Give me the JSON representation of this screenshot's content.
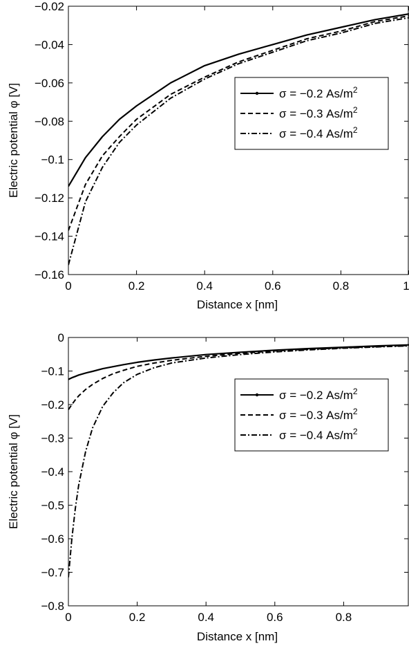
{
  "chart_data": [
    {
      "type": "line",
      "xlabel": "Distance x [nm]",
      "ylabel": "Electric potential φ [V]",
      "xlim": [
        0,
        1
      ],
      "ylim": [
        -0.16,
        -0.02
      ],
      "xticks": [
        0,
        0.2,
        0.4,
        0.6,
        0.8,
        1
      ],
      "xtick_labels": [
        "0",
        "0.2",
        "0.4",
        "0.6",
        "0.8",
        "1"
      ],
      "yticks": [
        -0.16,
        -0.14,
        -0.12,
        -0.1,
        -0.08,
        -0.06,
        -0.04,
        -0.02
      ],
      "ytick_labels": [
        "−0.16",
        "−0.14",
        "−0.12",
        "−0.1",
        "−0.08",
        "−0.06",
        "−0.04",
        "−0.02"
      ],
      "grid": false,
      "legend_position": "right",
      "x": [
        0,
        0.05,
        0.1,
        0.15,
        0.2,
        0.3,
        0.4,
        0.5,
        0.6,
        0.7,
        0.8,
        0.9,
        1.0
      ],
      "series": [
        {
          "name": "σ = −0.2 As/m",
          "name_sup": "2",
          "style": "solid",
          "color": "#000000",
          "values": [
            -0.114,
            -0.099,
            -0.088,
            -0.079,
            -0.072,
            -0.06,
            -0.051,
            -0.045,
            -0.04,
            -0.035,
            -0.031,
            -0.027,
            -0.024
          ]
        },
        {
          "name": "σ = −0.3 As/m",
          "name_sup": "2",
          "style": "dashed",
          "color": "#000000",
          "values": [
            -0.137,
            -0.113,
            -0.098,
            -0.088,
            -0.079,
            -0.066,
            -0.057,
            -0.049,
            -0.043,
            -0.037,
            -0.033,
            -0.028,
            -0.025
          ]
        },
        {
          "name": "σ = −0.4 As/m",
          "name_sup": "2",
          "style": "dashdot",
          "color": "#000000",
          "values": [
            -0.155,
            -0.122,
            -0.104,
            -0.091,
            -0.082,
            -0.068,
            -0.058,
            -0.05,
            -0.044,
            -0.038,
            -0.034,
            -0.029,
            -0.026
          ]
        }
      ]
    },
    {
      "type": "line",
      "xlabel": "Distance x [nm]",
      "ylabel": "Electric potential φ [V]",
      "xlim": [
        0,
        0.99
      ],
      "ylim": [
        -0.8,
        0
      ],
      "xticks": [
        0,
        0.2,
        0.4,
        0.6,
        0.8
      ],
      "xtick_labels": [
        "0",
        "0.2",
        "0.4",
        "0.6",
        "0.8"
      ],
      "yticks": [
        -0.8,
        -0.7,
        -0.6,
        -0.5,
        -0.4,
        -0.3,
        -0.2,
        -0.1,
        0
      ],
      "ytick_labels": [
        "−0.8",
        "−0.7",
        "−0.6",
        "−0.5",
        "−0.4",
        "−0.3",
        "−0.2",
        "−0.1",
        "0"
      ],
      "grid": false,
      "legend_position": "right",
      "x": [
        0,
        0.01,
        0.02,
        0.03,
        0.05,
        0.07,
        0.1,
        0.13,
        0.16,
        0.2,
        0.25,
        0.3,
        0.4,
        0.5,
        0.6,
        0.7,
        0.8,
        0.9,
        0.99
      ],
      "series": [
        {
          "name": "σ = −0.2 As/m",
          "name_sup": "2",
          "style": "solid",
          "color": "#000000",
          "values": [
            -0.125,
            -0.12,
            -0.116,
            -0.112,
            -0.106,
            -0.101,
            -0.093,
            -0.087,
            -0.081,
            -0.074,
            -0.067,
            -0.061,
            -0.051,
            -0.044,
            -0.038,
            -0.033,
            -0.029,
            -0.025,
            -0.022
          ]
        },
        {
          "name": "σ = −0.3 As/m",
          "name_sup": "2",
          "style": "dashed",
          "color": "#000000",
          "values": [
            -0.215,
            -0.2,
            -0.186,
            -0.174,
            -0.155,
            -0.14,
            -0.122,
            -0.108,
            -0.098,
            -0.086,
            -0.076,
            -0.068,
            -0.056,
            -0.047,
            -0.04,
            -0.035,
            -0.031,
            -0.027,
            -0.024
          ]
        },
        {
          "name": "σ = −0.4 As/m",
          "name_sup": "2",
          "style": "dashdot",
          "color": "#000000",
          "values": [
            -0.715,
            -0.6,
            -0.51,
            -0.44,
            -0.34,
            -0.27,
            -0.205,
            -0.165,
            -0.135,
            -0.11,
            -0.09,
            -0.076,
            -0.061,
            -0.051,
            -0.043,
            -0.037,
            -0.032,
            -0.028,
            -0.025
          ]
        }
      ]
    }
  ]
}
